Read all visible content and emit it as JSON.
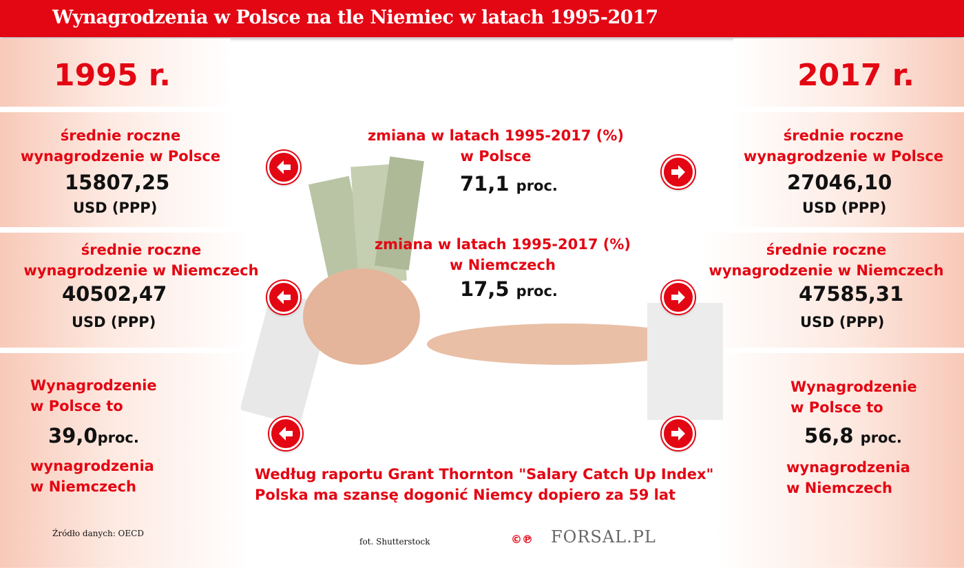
{
  "title": "Wynagrodzenia w Polsce na tle Niemiec w latach 1995-2017",
  "accent_color": "#e30613",
  "left": {
    "year": "1995 r.",
    "pl_label_1": "średnie roczne",
    "pl_label_2": "wynagrodzenie w Polsce",
    "pl_value": "15807,25",
    "pl_unit": "USD (PPP)",
    "de_label_1": "średnie roczne",
    "de_label_2": "wynagrodzenie w Niemczech",
    "de_value": "40502,47",
    "de_unit": "USD (PPP)",
    "ratio_1": "Wynagrodzenie",
    "ratio_2": "w Polsce to",
    "ratio_value": "39,0",
    "ratio_unit": "proc.",
    "ratio_3": "wynagrodzenia",
    "ratio_4": "w Niemczech"
  },
  "right": {
    "year": "2017 r.",
    "pl_label_1": "średnie roczne",
    "pl_label_2": "wynagrodzenie w Polsce",
    "pl_value": "27046,10",
    "pl_unit": "USD (PPP)",
    "de_label_1": "średnie roczne",
    "de_label_2": "wynagrodzenie w Niemczech",
    "de_value": "47585,31",
    "de_unit": "USD (PPP)",
    "ratio_1": "Wynagrodzenie",
    "ratio_2": "w Polsce to",
    "ratio_value": "56,8",
    "ratio_unit": "proc.",
    "ratio_3": "wynagrodzenia",
    "ratio_4": "w Niemczech"
  },
  "center": {
    "pl_change_1": "zmiana w latach 1995-2017 (%)",
    "pl_change_2": "w Polsce",
    "pl_change_value": "71,1",
    "pl_change_unit": "proc.",
    "de_change_1": "zmiana w latach 1995-2017 (%)",
    "de_change_2": "w Niemczech",
    "de_change_value": "17,5",
    "de_change_unit": "proc.",
    "report_1": "Według raportu Grant Thornton \"Salary Catch Up Index\"",
    "report_2": "Polska ma szansę dogonić Niemcy dopiero za 59 lat"
  },
  "footer": {
    "source": "Źródło danych: OECD",
    "photo": "fot. Shutterstock",
    "logo": "FORSAL.PL"
  },
  "icons": {
    "left_arrows": "arrow-left-circle-icon",
    "right_arrows": "arrow-right-circle-icon"
  }
}
